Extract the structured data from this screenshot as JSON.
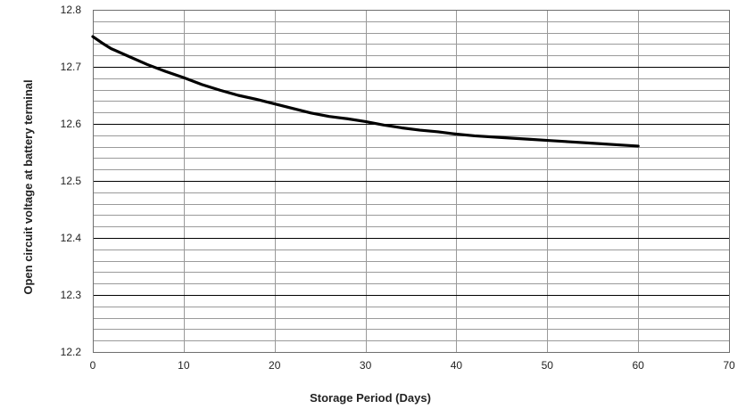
{
  "chart_data": {
    "type": "line",
    "title": "",
    "xlabel": "Storage Period (Days)",
    "ylabel": "Open circuit voltage at battery terminal",
    "xlim": [
      0,
      70
    ],
    "ylim": [
      12.2,
      12.8
    ],
    "x_ticks": [
      "0",
      "10",
      "20",
      "30",
      "40",
      "50",
      "60",
      "70"
    ],
    "y_ticks": [
      "12.2",
      "12.3",
      "12.4",
      "12.5",
      "12.6",
      "12.7",
      "12.8"
    ],
    "grid": true,
    "legend": "none",
    "colors": {
      "line": "#000000",
      "major_grid": "#000000",
      "minor_grid": "#9a9a9a"
    },
    "series": [
      {
        "x": [
          0,
          1,
          2,
          4,
          6,
          8,
          10,
          12,
          14,
          16,
          18,
          20,
          22,
          24,
          26,
          28,
          30,
          32,
          34,
          36,
          38,
          40,
          42,
          45,
          48,
          50,
          52,
          55,
          58,
          60
        ],
        "values": [
          12.753,
          12.742,
          12.732,
          12.718,
          12.704,
          12.692,
          12.681,
          12.669,
          12.659,
          12.65,
          12.643,
          12.635,
          12.627,
          12.619,
          12.613,
          12.609,
          12.604,
          12.598,
          12.593,
          12.589,
          12.586,
          12.582,
          12.579,
          12.576,
          12.573,
          12.571,
          12.569,
          12.566,
          12.563,
          12.561
        ]
      }
    ]
  }
}
